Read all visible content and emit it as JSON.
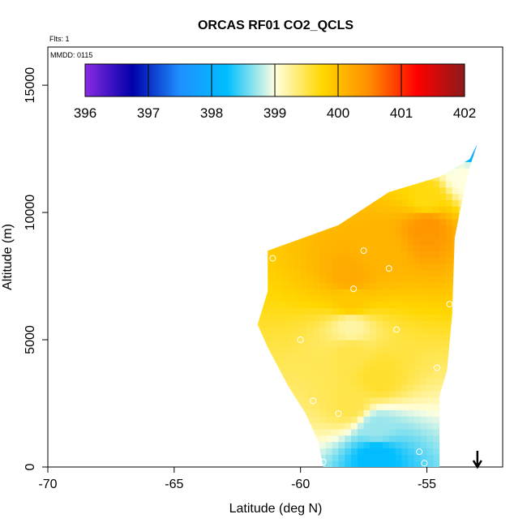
{
  "chart_data": {
    "type": "heatmap",
    "title": "ORCAS RF01 CO2_QCLS",
    "annotations": {
      "flights": "Flts: 1",
      "date": "MMDD: 0115"
    },
    "xlabel": "Latitude (deg N)",
    "ylabel": "Altitude (m)",
    "xlim": [
      -70,
      -52
    ],
    "ylim": [
      0,
      16500
    ],
    "x_ticks": [
      -70,
      -65,
      -60,
      -55
    ],
    "x_tick_labels": [
      "-70",
      "-65",
      "-60",
      "-55"
    ],
    "y_ticks": [
      0,
      5000,
      10000,
      15000
    ],
    "y_tick_labels": [
      "0",
      "5000",
      "10000",
      "15000"
    ],
    "colorbar": {
      "min": 396,
      "max": 402,
      "ticks": [
        396,
        397,
        398,
        399,
        400,
        401,
        402
      ],
      "tick_labels": [
        "396",
        "397",
        "398",
        "399",
        "400",
        "401",
        "402"
      ],
      "colors": [
        "#8a2be2",
        "#0000aa",
        "#1e90ff",
        "#00bfff",
        "#ffffe0",
        "#ffd700",
        "#ff8c00",
        "#ff0000",
        "#8b1a1a"
      ]
    },
    "profile_envelope": [
      [
        -59.1,
        0
      ],
      [
        -54.5,
        0
      ],
      [
        -54.5,
        2800
      ],
      [
        -54.2,
        3800
      ],
      [
        -54.0,
        6000
      ],
      [
        -53.9,
        9000
      ],
      [
        -53.6,
        10500
      ],
      [
        -53.3,
        11800
      ],
      [
        -53.0,
        12700
      ],
      [
        -53.3,
        12100
      ],
      [
        -54.5,
        11400
      ],
      [
        -56.5,
        10800
      ],
      [
        -58.5,
        9500
      ],
      [
        -61.3,
        8500
      ],
      [
        -61.3,
        6900
      ],
      [
        -61.7,
        5600
      ],
      [
        -61.3,
        4700
      ],
      [
        -60.5,
        3200
      ],
      [
        -59.8,
        2100
      ],
      [
        -59.3,
        1000
      ]
    ],
    "field_samples": [
      {
        "lat": -57,
        "alt": 500,
        "value": 398.2
      },
      {
        "lat": -57,
        "alt": 1500,
        "value": 398.7
      },
      {
        "lat": -58,
        "alt": 2500,
        "value": 399.5
      },
      {
        "lat": -57,
        "alt": 3500,
        "value": 399.6
      },
      {
        "lat": -58,
        "alt": 4500,
        "value": 399.5
      },
      {
        "lat": -58,
        "alt": 5500,
        "value": 399.2
      },
      {
        "lat": -58,
        "alt": 6500,
        "value": 399.9
      },
      {
        "lat": -58,
        "alt": 7500,
        "value": 400.2
      },
      {
        "lat": -57,
        "alt": 8500,
        "value": 400.1
      },
      {
        "lat": -55,
        "alt": 9500,
        "value": 400.4
      },
      {
        "lat": -55,
        "alt": 10500,
        "value": 399.7
      },
      {
        "lat": -53.5,
        "alt": 11500,
        "value": 399.0
      },
      {
        "lat": -53.1,
        "alt": 12500,
        "value": 397.9
      }
    ],
    "sample_points": [
      {
        "lat": -59.1,
        "alt": 200
      },
      {
        "lat": -55.3,
        "alt": 600
      },
      {
        "lat": -55.1,
        "alt": 150
      },
      {
        "lat": -59.5,
        "alt": 2600
      },
      {
        "lat": -58.5,
        "alt": 2100
      },
      {
        "lat": -54.6,
        "alt": 3900
      },
      {
        "lat": -60.0,
        "alt": 5000
      },
      {
        "lat": -56.2,
        "alt": 5400
      },
      {
        "lat": -54.1,
        "alt": 6400
      },
      {
        "lat": -57.9,
        "alt": 7000
      },
      {
        "lat": -56.5,
        "alt": 7800
      },
      {
        "lat": -61.1,
        "alt": 8200
      },
      {
        "lat": -57.5,
        "alt": 8500
      },
      {
        "lat": -53.7,
        "alt": 8600
      },
      {
        "lat": -53.2,
        "alt": 12600
      }
    ],
    "marker": {
      "lat": -53.0,
      "symbol": "down-arrow"
    }
  }
}
